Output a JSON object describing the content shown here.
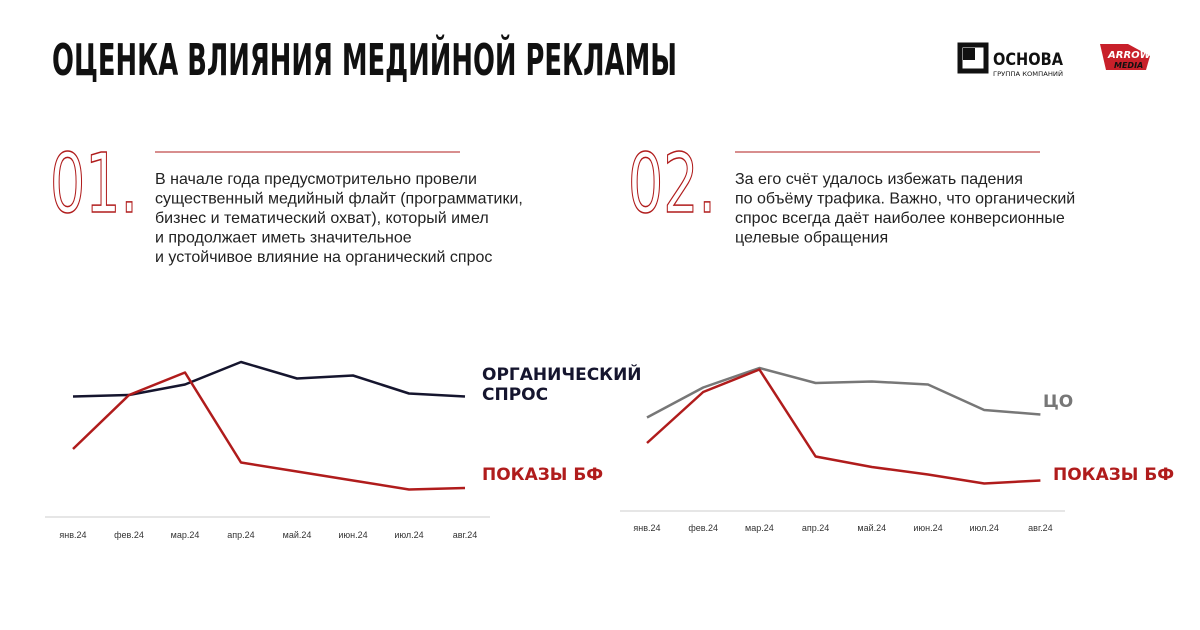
{
  "header": {
    "title": "ОЦЕНКА ВЛИЯНИЯ МЕДИЙНОЙ РЕКЛАМЫ",
    "logo1": {
      "name": "ОСНОВА",
      "subtitle": "ГРУППА КОМПАНИЙ"
    },
    "logo2": {
      "top": "ARROW",
      "bottom": "MEDIA"
    }
  },
  "sections": [
    {
      "number": "01.",
      "lines": [
        "В начале года предусмотрительно провели",
        "существенный медийный флайт (программатики,",
        "бизнес и тематический охват), который имел",
        "и продолжает иметь значительное",
        "и устойчивое влияние на органический спрос"
      ]
    },
    {
      "number": "02.",
      "lines": [
        "За его счёт удалось избежать падения",
        "по объёму трафика. Важно, что органический",
        "спрос всегда даёт наиболее конверсионные",
        "целевые обращения"
      ]
    }
  ],
  "chart_data": [
    {
      "type": "line",
      "categories": [
        "янв.24",
        "фев.24",
        "мар.24",
        "апр.24",
        "май.24",
        "июн.24",
        "июл.24",
        "авг.24"
      ],
      "ylim": [
        0,
        100
      ],
      "series": [
        {
          "name": "ОРГАНИЧЕСКИЙ СПРОС",
          "color": "#15152e",
          "values": [
            69,
            70,
            77,
            92,
            81,
            83,
            71,
            69
          ]
        },
        {
          "name": "ПОКАЗЫ БФ",
          "color": "#b01c1c",
          "values": [
            34,
            70,
            85,
            25,
            19,
            13,
            7,
            8
          ]
        }
      ]
    },
    {
      "type": "line",
      "categories": [
        "янв.24",
        "фев.24",
        "мар.24",
        "апр.24",
        "май.24",
        "июн.24",
        "июл.24",
        "авг.24"
      ],
      "ylim": [
        0,
        100
      ],
      "series": [
        {
          "name": "ЦО",
          "color": "#777777",
          "values": [
            55,
            75,
            88,
            78,
            79,
            77,
            60,
            57
          ]
        },
        {
          "name": "ПОКАЗЫ БФ",
          "color": "#b01c1c",
          "values": [
            38,
            72,
            87,
            29,
            22,
            17,
            11,
            13
          ]
        }
      ]
    }
  ]
}
